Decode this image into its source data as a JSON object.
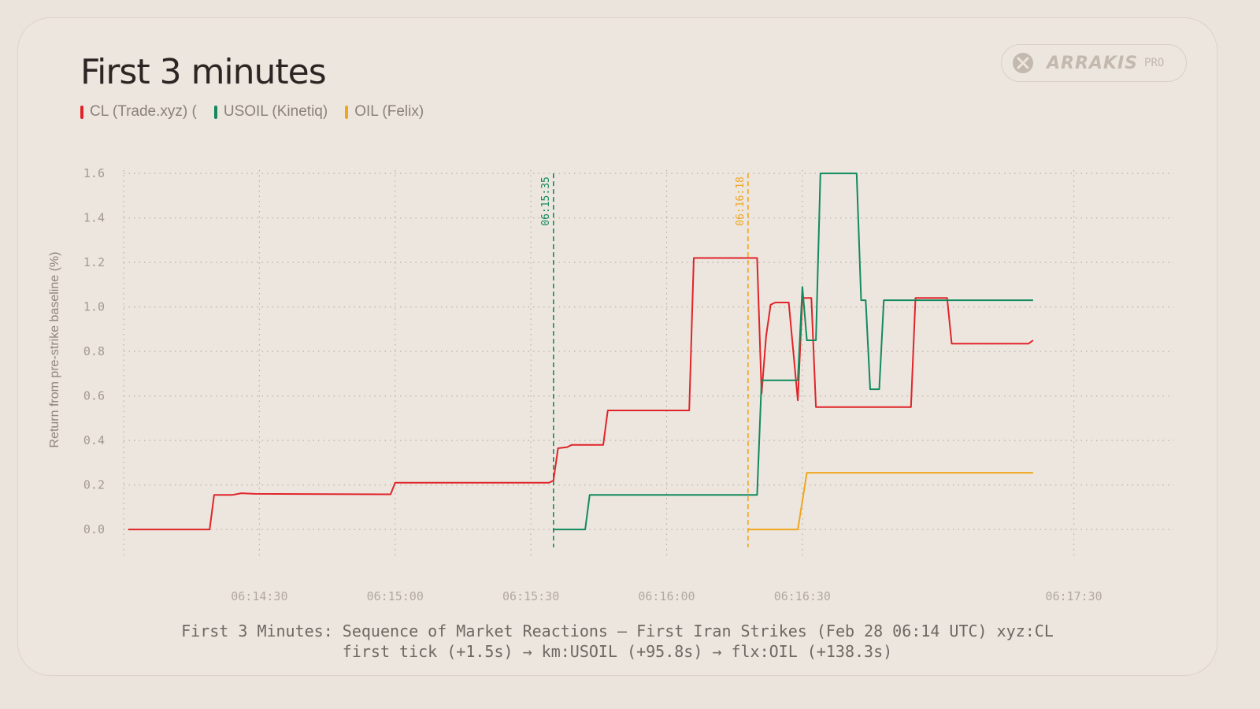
{
  "header": {
    "title": "First 3 minutes",
    "legend": [
      {
        "label": "CL (Trade.xyz) (",
        "color": "#e0242a"
      },
      {
        "label": "USOIL (Kinetiq)",
        "color": "#138a5e"
      },
      {
        "label": "OIL (Felix)",
        "color": "#f0a51f"
      }
    ]
  },
  "logo": {
    "word": "ARRAKIS",
    "badge": "PRO",
    "icon": "arrakis-logo-icon"
  },
  "caption": {
    "line1": "First 3 Minutes: Sequence of Market Reactions — First Iran Strikes (Feb 28 06:14 UTC) xyz:CL",
    "line2": "first tick (+1.5s) → km:USOIL (+95.8s) → flx:OIL (+138.3s)"
  },
  "chart_data": {
    "type": "line",
    "title": "First 3 minutes",
    "xlabel": "",
    "ylabel": "Return from pre-strike baseline (%)",
    "x_unit": "HH:MM:SS (UTC)",
    "xlim": [
      "06:14:00",
      "06:17:52"
    ],
    "ylim": [
      -0.12,
      1.65
    ],
    "y_ticks": [
      0.0,
      0.2,
      0.4,
      0.6,
      0.8,
      1.0,
      1.2,
      1.4,
      1.6
    ],
    "x_ticks": [
      "06:14:30",
      "06:15:00",
      "06:15:30",
      "06:16:00",
      "06:16:30",
      "06:17:30"
    ],
    "grid": true,
    "legend_position": "top-left",
    "annotations": [
      {
        "label": "06:15:35",
        "x": "06:15:35",
        "color": "#138a5e"
      },
      {
        "label": "06:16:18",
        "x": "06:16:18",
        "color": "#f0a51f"
      }
    ],
    "series": [
      {
        "name": "CL (Trade.xyz) (",
        "color": "#e0242a",
        "points": [
          [
            "06:14:01",
            0.0
          ],
          [
            "06:14:19",
            0.0
          ],
          [
            "06:14:20",
            0.155
          ],
          [
            "06:14:24",
            0.155
          ],
          [
            "06:14:26",
            0.163
          ],
          [
            "06:14:29",
            0.16
          ],
          [
            "06:14:59",
            0.158
          ],
          [
            "06:15:00",
            0.21
          ],
          [
            "06:15:34",
            0.21
          ],
          [
            "06:15:35",
            0.22
          ],
          [
            "06:15:36",
            0.365
          ],
          [
            "06:15:38",
            0.37
          ],
          [
            "06:15:39",
            0.38
          ],
          [
            "06:15:46",
            0.38
          ],
          [
            "06:15:47",
            0.535
          ],
          [
            "06:16:05",
            0.535
          ],
          [
            "06:16:06",
            1.22
          ],
          [
            "06:16:20",
            1.22
          ],
          [
            "06:16:21",
            0.61
          ],
          [
            "06:16:22",
            0.87
          ],
          [
            "06:16:23",
            1.01
          ],
          [
            "06:16:24",
            1.02
          ],
          [
            "06:16:27",
            1.02
          ],
          [
            "06:16:29",
            0.58
          ],
          [
            "06:16:30",
            1.04
          ],
          [
            "06:16:32",
            1.04
          ],
          [
            "06:16:33",
            0.55
          ],
          [
            "06:16:54",
            0.55
          ],
          [
            "06:16:55",
            1.04
          ],
          [
            "06:17:02",
            1.04
          ],
          [
            "06:17:03",
            0.835
          ],
          [
            "06:17:20",
            0.835
          ],
          [
            "06:17:21",
            0.85
          ]
        ]
      },
      {
        "name": "USOIL (Kinetiq)",
        "color": "#138a5e",
        "points": [
          [
            "06:15:35",
            0.0
          ],
          [
            "06:15:42",
            0.0
          ],
          [
            "06:15:43",
            0.155
          ],
          [
            "06:16:20",
            0.155
          ],
          [
            "06:16:21",
            0.67
          ],
          [
            "06:16:29",
            0.67
          ],
          [
            "06:16:30",
            1.09
          ],
          [
            "06:16:31",
            0.85
          ],
          [
            "06:16:33",
            0.85
          ],
          [
            "06:16:34",
            1.6
          ],
          [
            "06:16:42",
            1.6
          ],
          [
            "06:16:43",
            1.03
          ],
          [
            "06:16:44",
            1.03
          ],
          [
            "06:16:45",
            0.63
          ],
          [
            "06:16:47",
            0.63
          ],
          [
            "06:16:48",
            1.03
          ],
          [
            "06:17:21",
            1.03
          ]
        ]
      },
      {
        "name": "OIL (Felix)",
        "color": "#f0a51f",
        "points": [
          [
            "06:16:18",
            0.0
          ],
          [
            "06:16:29",
            0.0
          ],
          [
            "06:16:31",
            0.255
          ],
          [
            "06:17:21",
            0.255
          ]
        ]
      }
    ]
  }
}
